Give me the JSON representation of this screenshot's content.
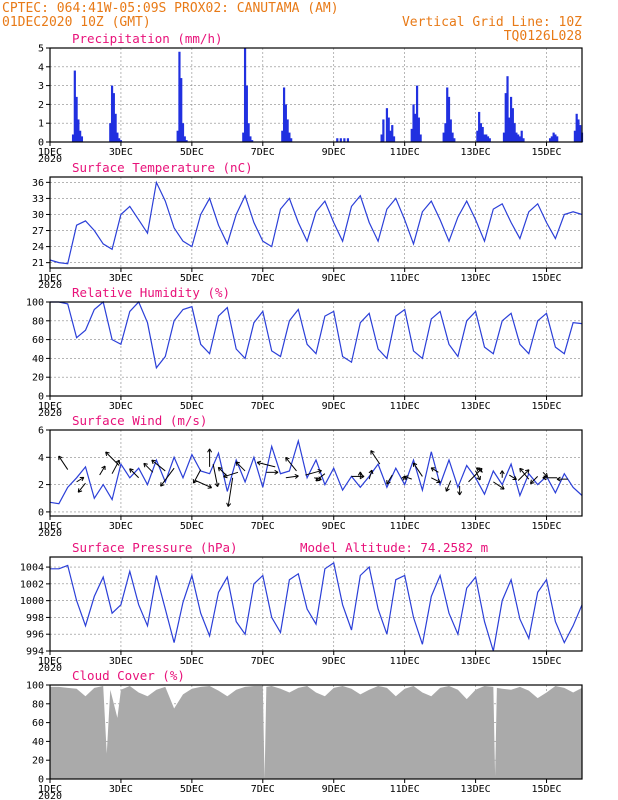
{
  "header": {
    "line1_left": "CPTEC:   064:41W-05:09S   PROX02: CANUTAMA (AM)",
    "line2_left": "01DEC2020 10Z (GMT)",
    "line2_right": "Vertical Grid Line: 10Z",
    "line3_right": "TQ0126L028"
  },
  "x_axis": {
    "tick_labels": [
      "1DEC",
      "3DEC",
      "5DEC",
      "7DEC",
      "9DEC",
      "11DEC",
      "13DEC",
      "15DEC"
    ],
    "tick_days": [
      0,
      2,
      4,
      6,
      8,
      10,
      12,
      14
    ],
    "year_label": "2020",
    "range_days": [
      0,
      15
    ]
  },
  "colors": {
    "header": "#e87a17",
    "panel_title": "#e8127a",
    "line": "#2b3fd8",
    "bars": "#2130e0",
    "cloud": "#aaaaaa",
    "grid": "#888888",
    "arrows": "#000000"
  },
  "chart_data": [
    {
      "type": "bar",
      "title": "Precipitation (mm/h)",
      "ylim": [
        0,
        5
      ],
      "yticks": [
        0,
        1,
        2,
        3,
        4,
        5
      ],
      "grid": true,
      "x_unit": "days since 01DEC2020 10Z",
      "x": [
        0.65,
        0.7,
        0.75,
        0.8,
        0.85,
        0.9,
        1.7,
        1.75,
        1.8,
        1.85,
        1.9,
        1.95,
        2.0,
        3.6,
        3.65,
        3.7,
        3.75,
        3.8,
        3.85,
        5.45,
        5.5,
        5.55,
        5.6,
        5.65,
        5.7,
        6.55,
        6.6,
        6.65,
        6.7,
        6.75,
        6.8,
        8.1,
        8.2,
        8.3,
        8.4,
        9.35,
        9.4,
        9.5,
        9.55,
        9.6,
        9.65,
        9.7,
        10.2,
        10.25,
        10.3,
        10.35,
        10.4,
        10.45,
        11.1,
        11.15,
        11.2,
        11.25,
        11.3,
        11.35,
        11.4,
        12.05,
        12.1,
        12.15,
        12.2,
        12.25,
        12.3,
        12.35,
        12.4,
        12.8,
        12.85,
        12.9,
        12.95,
        13.0,
        13.05,
        13.1,
        13.15,
        13.2,
        13.25,
        13.3,
        13.35,
        14.1,
        14.15,
        14.2,
        14.25,
        14.3,
        14.8,
        14.85,
        14.9,
        14.95,
        15.0
      ],
      "values": [
        0.4,
        3.8,
        2.4,
        1.2,
        0.6,
        0.3,
        1.0,
        3.0,
        2.6,
        1.5,
        0.5,
        0.2,
        0.1,
        0.6,
        4.8,
        3.4,
        1.0,
        0.3,
        0.1,
        0.5,
        5.0,
        3.0,
        1.0,
        0.3,
        0.1,
        0.6,
        2.9,
        2.0,
        1.2,
        0.5,
        0.2,
        0.2,
        0.2,
        0.2,
        0.2,
        0.4,
        1.2,
        1.8,
        1.3,
        0.6,
        0.9,
        0.3,
        0.7,
        2.0,
        1.5,
        3.0,
        1.3,
        0.4,
        0.5,
        1.0,
        2.9,
        2.4,
        1.2,
        0.5,
        0.2,
        0.6,
        1.6,
        1.0,
        0.8,
        0.4,
        0.4,
        0.3,
        0.2,
        0.5,
        2.6,
        3.5,
        1.3,
        2.4,
        1.8,
        1.0,
        0.5,
        0.4,
        0.3,
        0.6,
        0.2,
        0.2,
        0.3,
        0.5,
        0.4,
        0.3,
        0.6,
        1.5,
        1.2,
        0.9,
        0.5
      ]
    },
    {
      "type": "line",
      "title": "Surface Temperature (nC)",
      "ylim": [
        20,
        37
      ],
      "yticks": [
        21,
        24,
        27,
        30,
        33,
        36
      ],
      "grid": true,
      "x_unit": "days since 01DEC2020 10Z",
      "x": [
        0.0,
        0.25,
        0.5,
        0.75,
        1.0,
        1.25,
        1.5,
        1.75,
        2.0,
        2.25,
        2.5,
        2.75,
        3.0,
        3.25,
        3.5,
        3.75,
        4.0,
        4.25,
        4.5,
        4.75,
        5.0,
        5.25,
        5.5,
        5.75,
        6.0,
        6.25,
        6.5,
        6.75,
        7.0,
        7.25,
        7.5,
        7.75,
        8.0,
        8.25,
        8.5,
        8.75,
        9.0,
        9.25,
        9.5,
        9.75,
        10.0,
        10.25,
        10.5,
        10.75,
        11.0,
        11.25,
        11.5,
        11.75,
        12.0,
        12.25,
        12.5,
        12.75,
        13.0,
        13.25,
        13.5,
        13.75,
        14.0,
        14.25,
        14.5,
        14.75,
        15.0
      ],
      "values": [
        21.5,
        21.0,
        20.8,
        28.0,
        28.8,
        27.0,
        24.5,
        23.5,
        30.0,
        31.5,
        29.0,
        26.5,
        36.0,
        32.5,
        27.5,
        25.0,
        24.0,
        30.0,
        33.0,
        28.0,
        24.5,
        30.0,
        33.5,
        28.5,
        25.0,
        24.0,
        31.0,
        33.0,
        28.5,
        25.0,
        30.5,
        32.5,
        28.5,
        25.0,
        31.5,
        33.5,
        28.5,
        25.0,
        31.0,
        33.0,
        29.0,
        24.5,
        30.5,
        32.5,
        29.0,
        25.0,
        29.5,
        32.5,
        29.0,
        25.0,
        31.0,
        32.0,
        28.5,
        25.5,
        30.5,
        32.0,
        28.5,
        25.5,
        30.0,
        30.5,
        30.0
      ]
    },
    {
      "type": "line",
      "title": "Relative Humidity (%)",
      "ylim": [
        0,
        100
      ],
      "yticks": [
        0,
        20,
        40,
        60,
        80,
        100
      ],
      "grid": true,
      "x_unit": "days since 01DEC2020 10Z",
      "x": [
        0.0,
        0.25,
        0.5,
        0.75,
        1.0,
        1.25,
        1.5,
        1.75,
        2.0,
        2.25,
        2.5,
        2.75,
        3.0,
        3.25,
        3.5,
        3.75,
        4.0,
        4.25,
        4.5,
        4.75,
        5.0,
        5.25,
        5.5,
        5.75,
        6.0,
        6.25,
        6.5,
        6.75,
        7.0,
        7.25,
        7.5,
        7.75,
        8.0,
        8.25,
        8.5,
        8.75,
        9.0,
        9.25,
        9.5,
        9.75,
        10.0,
        10.25,
        10.5,
        10.75,
        11.0,
        11.25,
        11.5,
        11.75,
        12.0,
        12.25,
        12.5,
        12.75,
        13.0,
        13.25,
        13.5,
        13.75,
        14.0,
        14.25,
        14.5,
        14.75,
        15.0
      ],
      "values": [
        100,
        100,
        98,
        62,
        70,
        92,
        100,
        60,
        55,
        90,
        100,
        78,
        30,
        42,
        80,
        92,
        95,
        55,
        45,
        85,
        94,
        50,
        40,
        78,
        90,
        48,
        42,
        80,
        92,
        55,
        45,
        85,
        90,
        42,
        36,
        78,
        88,
        50,
        40,
        85,
        92,
        48,
        40,
        82,
        90,
        55,
        42,
        80,
        90,
        52,
        45,
        80,
        88,
        55,
        45,
        80,
        88,
        52,
        45,
        78,
        77
      ]
    },
    {
      "type": "line",
      "title": "Surface Wind (m/s)",
      "ylim": [
        -0.3,
        6
      ],
      "yticks": [
        0,
        2,
        4,
        6
      ],
      "grid": true,
      "x_unit": "days since 01DEC2020 10Z",
      "x": [
        0.0,
        0.25,
        0.5,
        0.75,
        1.0,
        1.25,
        1.5,
        1.75,
        2.0,
        2.25,
        2.5,
        2.75,
        3.0,
        3.25,
        3.5,
        3.75,
        4.0,
        4.25,
        4.5,
        4.75,
        5.0,
        5.25,
        5.5,
        5.75,
        6.0,
        6.25,
        6.5,
        6.75,
        7.0,
        7.25,
        7.5,
        7.75,
        8.0,
        8.25,
        8.5,
        8.75,
        9.0,
        9.25,
        9.5,
        9.75,
        10.0,
        10.25,
        10.5,
        10.75,
        11.0,
        11.25,
        11.5,
        11.75,
        12.0,
        12.25,
        12.5,
        12.75,
        13.0,
        13.25,
        13.5,
        13.75,
        14.0,
        14.25,
        14.5,
        14.75,
        15.0
      ],
      "values": [
        0.7,
        0.6,
        1.8,
        2.5,
        3.3,
        1.0,
        2.0,
        0.9,
        3.5,
        2.5,
        3.2,
        2.0,
        3.8,
        2.2,
        4.0,
        2.5,
        4.2,
        3.0,
        2.8,
        4.3,
        1.5,
        3.8,
        2.2,
        4.0,
        1.8,
        4.8,
        2.8,
        3.0,
        5.2,
        2.5,
        3.8,
        2.0,
        3.2,
        1.6,
        2.6,
        1.8,
        2.6,
        3.5,
        1.8,
        3.2,
        2.0,
        3.8,
        1.6,
        4.4,
        2.0,
        3.8,
        1.8,
        3.4,
        2.5,
        1.3,
        3.0,
        2.0,
        3.5,
        1.2,
        2.8,
        2.0,
        2.6,
        1.4,
        2.8,
        1.8,
        1.2
      ],
      "wind_vectors": {
        "x": [
          0.5,
          0.75,
          1.0,
          1.4,
          1.75,
          1.95,
          2.5,
          2.9,
          3.25,
          3.5,
          4.1,
          4.25,
          4.5,
          4.6,
          5.0,
          5.15,
          5.3,
          5.5,
          6.1,
          6.35,
          6.65,
          6.95,
          7.2,
          7.45,
          7.75,
          8.5,
          8.75,
          9.0,
          9.3,
          9.65,
          9.95,
          10.2,
          10.5,
          10.75,
          10.95,
          11.3,
          11.55,
          11.8,
          12.0,
          12.2,
          12.5,
          12.75,
          12.95,
          13.2,
          13.5,
          13.75,
          13.9,
          14.3,
          14.6
        ],
        "y": [
          3.1,
          2.2,
          2.1,
          2.7,
          2.8,
          3.4,
          2.5,
          2.9,
          3.0,
          3.2,
          2.3,
          3.1,
          3.3,
          3.5,
          2.6,
          2.5,
          2.9,
          3.0,
          2.9,
          3.3,
          2.5,
          3.0,
          2.7,
          2.5,
          2.8,
          2.6,
          2.4,
          2.4,
          3.5,
          2.7,
          2.3,
          2.4,
          2.6,
          2.5,
          2.9,
          2.3,
          1.9,
          2.2,
          3.0,
          2.9,
          2.2,
          2.5,
          2.7,
          2.3,
          2.4,
          2.6,
          2.9,
          2.5,
          2.4
        ],
        "u": [
          -1.0,
          0.8,
          -0.8,
          0.6,
          0.8,
          -1.5,
          -1.0,
          -1.0,
          -1.5,
          -1.5,
          1.8,
          -0.8,
          0.0,
          0.5,
          -1.0,
          -0.5,
          -1.6,
          -1.0,
          1.3,
          -2.0,
          1.4,
          -1.2,
          1.8,
          0.8,
          -1.0,
          1.4,
          0.0,
          0.3,
          -1.0,
          -0.6,
          0.2,
          -0.8,
          -1.0,
          1.0,
          -0.8,
          -0.5,
          0.0,
          1.5,
          0.5,
          -0.7,
          1.2,
          0.0,
          0.8,
          1.2,
          -1.0,
          -0.8,
          0.5,
          -1.6,
          -1.2
        ],
        "v": [
          1.5,
          0.5,
          -1.0,
          1.0,
          1.5,
          1.5,
          1.0,
          1.0,
          1.2,
          -2.0,
          -0.8,
          -1.5,
          2.0,
          -2.5,
          1.0,
          -3.2,
          -0.5,
          1.0,
          0.0,
          0.5,
          0.2,
          1.5,
          0.5,
          -0.2,
          -0.8,
          0.0,
          0.8,
          1.0,
          1.5,
          -1.0,
          0.5,
          0.3,
          1.5,
          -0.5,
          0.5,
          -1.2,
          -1.0,
          1.5,
          -1.0,
          0.5,
          -0.8,
          0.8,
          -0.5,
          1.2,
          1.2,
          -0.8,
          -0.5,
          0.0,
          0.0
        ]
      }
    },
    {
      "type": "line",
      "title": "Surface Pressure (hPa)",
      "annotation": "Model Altitude: 74.2582 m",
      "ylim": [
        994,
        1005.2
      ],
      "yticks": [
        994,
        996,
        998,
        1000,
        1002,
        1004
      ],
      "grid": true,
      "x_unit": "days since 01DEC2020 10Z",
      "x": [
        0.0,
        0.25,
        0.5,
        0.75,
        1.0,
        1.25,
        1.5,
        1.75,
        2.0,
        2.25,
        2.5,
        2.75,
        3.0,
        3.25,
        3.5,
        3.75,
        4.0,
        4.25,
        4.5,
        4.75,
        5.0,
        5.25,
        5.5,
        5.75,
        6.0,
        6.25,
        6.5,
        6.75,
        7.0,
        7.25,
        7.5,
        7.75,
        8.0,
        8.25,
        8.5,
        8.75,
        9.0,
        9.25,
        9.5,
        9.75,
        10.0,
        10.25,
        10.5,
        10.75,
        11.0,
        11.25,
        11.5,
        11.75,
        12.0,
        12.25,
        12.5,
        12.75,
        13.0,
        13.25,
        13.5,
        13.75,
        14.0,
        14.25,
        14.5,
        14.75,
        15.0
      ],
      "values": [
        1003.8,
        1003.8,
        1004.2,
        1000.0,
        997.0,
        1000.5,
        1002.8,
        998.5,
        999.5,
        1003.5,
        999.5,
        997.0,
        1003.0,
        999.0,
        995.0,
        999.8,
        1003.0,
        998.5,
        995.8,
        1001.0,
        1002.8,
        997.5,
        996.0,
        1002.0,
        1003.0,
        998.0,
        996.2,
        1002.5,
        1003.2,
        999.0,
        997.2,
        1003.8,
        1004.5,
        999.5,
        996.5,
        1003.0,
        1004.0,
        999.0,
        996.0,
        1002.5,
        1003.0,
        998.0,
        994.8,
        1000.5,
        1003.0,
        998.5,
        996.0,
        1001.5,
        1002.8,
        997.5,
        994.0,
        1000.0,
        1002.5,
        997.8,
        995.5,
        1001.0,
        1002.5,
        997.5,
        995.0,
        997.0,
        999.5
      ]
    },
    {
      "type": "area",
      "title": "Cloud Cover (%)",
      "ylim": [
        0,
        100
      ],
      "yticks": [
        0,
        20,
        40,
        60,
        80,
        100
      ],
      "grid": true,
      "x_unit": "days since 01DEC2020 10Z",
      "x": [
        0.0,
        0.25,
        0.5,
        0.75,
        1.0,
        1.25,
        1.5,
        1.6,
        1.7,
        1.9,
        2.0,
        2.25,
        2.5,
        2.75,
        3.0,
        3.25,
        3.5,
        3.75,
        4.0,
        4.25,
        4.5,
        4.75,
        5.0,
        5.25,
        5.5,
        5.75,
        6.0,
        6.05,
        6.1,
        6.25,
        6.5,
        6.75,
        7.0,
        7.25,
        7.5,
        7.75,
        8.0,
        8.25,
        8.5,
        8.75,
        9.0,
        9.25,
        9.5,
        9.75,
        10.0,
        10.25,
        10.5,
        10.75,
        11.0,
        11.25,
        11.5,
        11.75,
        12.0,
        12.25,
        12.5,
        12.55,
        12.6,
        12.75,
        13.0,
        13.25,
        13.5,
        13.75,
        14.0,
        14.25,
        14.5,
        14.75,
        15.0
      ],
      "values": [
        98,
        98,
        97,
        96,
        88,
        97,
        99,
        27,
        95,
        65,
        95,
        99,
        92,
        88,
        95,
        98,
        75,
        90,
        96,
        98,
        99,
        94,
        88,
        95,
        98,
        99,
        99,
        0,
        98,
        99,
        96,
        92,
        97,
        99,
        92,
        88,
        97,
        99,
        96,
        90,
        95,
        99,
        97,
        88,
        96,
        99,
        92,
        88,
        97,
        99,
        95,
        85,
        95,
        99,
        98,
        3,
        97,
        96,
        95,
        98,
        94,
        86,
        92,
        99,
        97,
        92,
        97
      ]
    }
  ]
}
